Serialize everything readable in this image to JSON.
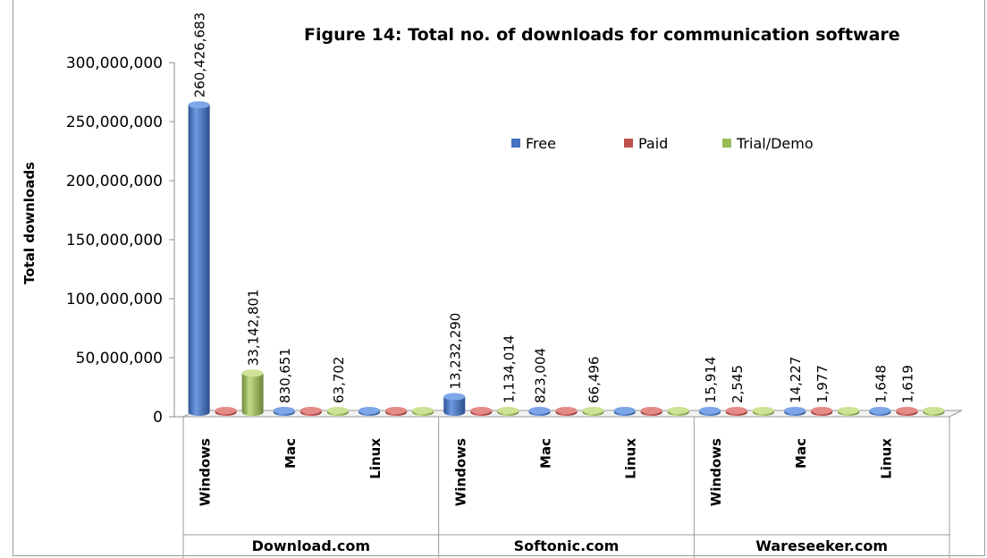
{
  "chart_data": {
    "type": "bar",
    "title": "Figure 14: Total  no. of downloads for communication software",
    "ylabel": "Total downloads",
    "xlabel": "",
    "ylim": [
      0,
      300000000
    ],
    "yticks": [
      "0",
      "50,000,000",
      "100,000,000",
      "150,000,000",
      "200,000,000",
      "250,000,000",
      "300,000,000"
    ],
    "ytick_values": [
      0,
      50000000,
      100000000,
      150000000,
      200000000,
      250000000,
      300000000
    ],
    "legend_position": "top-right",
    "grid": false,
    "groups": [
      {
        "site": "Download.com",
        "platforms": [
          {
            "os": "Windows",
            "values": {
              "Free": 260426683,
              "Paid": 0,
              "Trial/Demo": 33142801
            },
            "labels": [
              "260,426,683",
              "",
              "33,142,801"
            ]
          },
          {
            "os": "Mac",
            "values": {
              "Free": 830651,
              "Paid": 0,
              "Trial/Demo": 63702
            },
            "labels": [
              "830,651",
              "",
              "63,702"
            ]
          },
          {
            "os": "Linux",
            "values": {
              "Free": 0,
              "Paid": 0,
              "Trial/Demo": 0
            },
            "labels": [
              "",
              "",
              ""
            ]
          }
        ]
      },
      {
        "site": "Softonic.com",
        "platforms": [
          {
            "os": "Windows",
            "values": {
              "Free": 13232290,
              "Paid": 0,
              "Trial/Demo": 1134014
            },
            "labels": [
              "13,232,290",
              "",
              "1,134,014"
            ]
          },
          {
            "os": "Mac",
            "values": {
              "Free": 823004,
              "Paid": 0,
              "Trial/Demo": 66496
            },
            "labels": [
              "823,004",
              "",
              "66,496"
            ]
          },
          {
            "os": "Linux",
            "values": {
              "Free": 0,
              "Paid": 0,
              "Trial/Demo": 0
            },
            "labels": [
              "",
              "",
              ""
            ]
          }
        ]
      },
      {
        "site": "Wareseeker.com",
        "platforms": [
          {
            "os": "Windows",
            "values": {
              "Free": 15914,
              "Paid": 2545,
              "Trial/Demo": 0
            },
            "labels": [
              "15,914",
              "2,545",
              ""
            ]
          },
          {
            "os": "Mac",
            "values": {
              "Free": 14227,
              "Paid": 1977,
              "Trial/Demo": 0
            },
            "labels": [
              "14,227",
              "1,977",
              ""
            ]
          },
          {
            "os": "Linux",
            "values": {
              "Free": 1648,
              "Paid": 1619,
              "Trial/Demo": 0
            },
            "labels": [
              "1,648",
              "1,619",
              ""
            ]
          }
        ]
      }
    ],
    "series": [
      {
        "name": "Free",
        "color": "#4472C4"
      },
      {
        "name": "Paid",
        "color": "#C0504D"
      },
      {
        "name": "Trial/Demo",
        "color": "#9BBB59"
      }
    ]
  }
}
